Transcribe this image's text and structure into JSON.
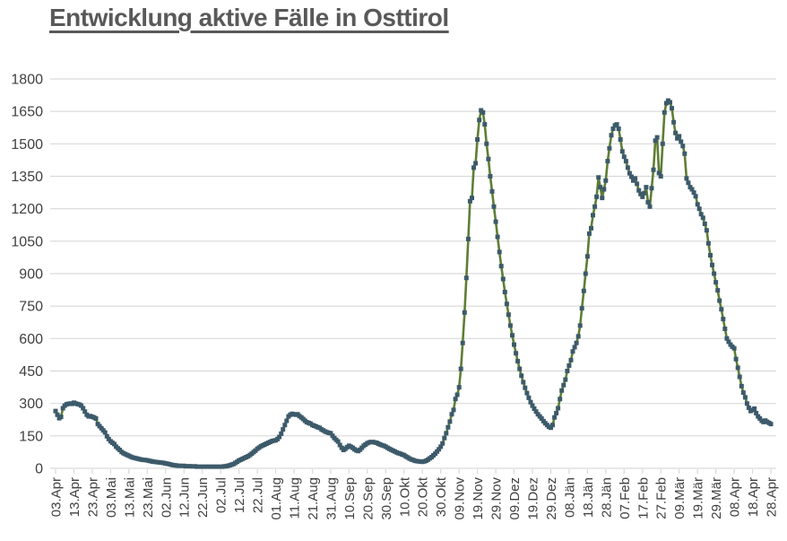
{
  "colors": {
    "background": "#ffffff",
    "title": "#595959",
    "axis_label": "#404040",
    "gridline": "#d9d9d9",
    "tick": "#d9d9d9",
    "line": "#5e7e34",
    "marker": "#3c5a6a"
  },
  "chart_data": {
    "type": "line",
    "title": "Entwicklung aktive Fälle in Osttirol",
    "xlabel": "",
    "ylabel": "",
    "ylim": [
      0,
      1800
    ],
    "y_tick_step": 150,
    "y_tick_labels": [
      "0",
      "150",
      "300",
      "450",
      "600",
      "750",
      "900",
      "1050",
      "1200",
      "1350",
      "1500",
      "1650",
      "1800"
    ],
    "grid": "horizontal",
    "legend": "none",
    "x_tick_interval_days": 10,
    "x_tick_labels": [
      "03.Apr",
      "13.Apr",
      "23.Apr",
      "03.Mai",
      "13.Mai",
      "23.Mai",
      "02.Jun",
      "12.Jun",
      "22.Jun",
      "02.Jul",
      "12.Jul",
      "22.Jul",
      "01.Aug",
      "11.Aug",
      "21.Aug",
      "31.Aug",
      "10.Sep",
      "20.Sep",
      "30.Sep",
      "10.Okt",
      "20.Okt",
      "30.Okt",
      "09.Nov",
      "19.Nov",
      "29.Nov",
      "09.Dez",
      "19.Dez",
      "29.Dez",
      "08.Jän",
      "18.Jän",
      "28.Jän",
      "07.Feb",
      "17.Feb",
      "27.Feb",
      "09.Mär",
      "19.Mär",
      "29.Mär",
      "08.Apr",
      "18.Apr",
      "28.Apr"
    ],
    "series": [
      {
        "name": "aktive Fälle",
        "marker": "square",
        "marker_color": "#3c5a6a",
        "line_color": "#5e7e34",
        "start_label": "03.Apr",
        "end_label": "28.Apr",
        "values_daily": [
          265,
          248,
          232,
          238,
          278,
          290,
          296,
          298,
          300,
          298,
          303,
          300,
          297,
          295,
          290,
          278,
          262,
          248,
          240,
          242,
          238,
          235,
          230,
          205,
          195,
          185,
          175,
          166,
          148,
          135,
          125,
          118,
          112,
          100,
          92,
          85,
          76,
          70,
          66,
          62,
          58,
          54,
          50,
          48,
          46,
          44,
          42,
          40,
          39,
          38,
          37,
          35,
          33,
          31,
          30,
          29,
          28,
          27,
          26,
          25,
          23,
          21,
          19,
          17,
          15,
          14,
          13,
          12,
          12,
          11,
          11,
          10,
          10,
          10,
          9,
          9,
          9,
          8,
          8,
          8,
          8,
          8,
          8,
          8,
          8,
          8,
          8,
          8,
          8,
          8,
          8,
          8,
          9,
          10,
          12,
          14,
          17,
          20,
          25,
          30,
          36,
          40,
          44,
          48,
          52,
          56,
          62,
          68,
          75,
          82,
          90,
          96,
          102,
          106,
          110,
          114,
          118,
          122,
          126,
          128,
          130,
          135,
          145,
          160,
          180,
          200,
          220,
          240,
          248,
          252,
          250,
          248,
          250,
          242,
          235,
          228,
          220,
          213,
          210,
          207,
          200,
          197,
          194,
          190,
          187,
          180,
          175,
          170,
          167,
          164,
          162,
          150,
          140,
          132,
          124,
          108,
          95,
          85,
          90,
          98,
          104,
          100,
          95,
          88,
          83,
          80,
          86,
          95,
          104,
          110,
          116,
          120,
          122,
          122,
          120,
          118,
          114,
          110,
          107,
          104,
          100,
          95,
          90,
          86,
          82,
          78,
          74,
          70,
          67,
          64,
          61,
          55,
          50,
          45,
          41,
          38,
          35,
          33,
          32,
          31,
          30,
          32,
          35,
          40,
          46,
          52,
          60,
          68,
          78,
          88,
          100,
          115,
          140,
          162,
          190,
          216,
          250,
          270,
          320,
          340,
          375,
          460,
          580,
          720,
          880,
          1060,
          1235,
          1250,
          1390,
          1410,
          1520,
          1610,
          1655,
          1645,
          1590,
          1500,
          1430,
          1350,
          1280,
          1210,
          1140,
          1070,
          1000,
          935,
          875,
          815,
          760,
          710,
          660,
          615,
          572,
          532,
          495,
          460,
          428,
          398,
          372,
          348,
          326,
          306,
          290,
          276,
          262,
          250,
          240,
          230,
          218,
          208,
          200,
          192,
          188,
          200,
          235,
          255,
          278,
          320,
          360,
          385,
          410,
          450,
          475,
          500,
          540,
          560,
          580,
          610,
          660,
          740,
          820,
          900,
          980,
          1085,
          1110,
          1170,
          1210,
          1255,
          1345,
          1300,
          1250,
          1290,
          1330,
          1420,
          1480,
          1540,
          1570,
          1585,
          1590,
          1570,
          1520,
          1465,
          1440,
          1420,
          1390,
          1364,
          1348,
          1330,
          1340,
          1315,
          1285,
          1268,
          1255,
          1272,
          1300,
          1230,
          1210,
          1295,
          1380,
          1515,
          1530,
          1365,
          1350,
          1500,
          1645,
          1688,
          1700,
          1692,
          1665,
          1600,
          1550,
          1525,
          1535,
          1510,
          1490,
          1455,
          1340,
          1320,
          1300,
          1290,
          1275,
          1258,
          1220,
          1200,
          1175,
          1158,
          1130,
          1100,
          1040,
          985,
          940,
          900,
          860,
          823,
          775,
          735,
          690,
          645,
          600,
          585,
          572,
          562,
          555,
          505,
          465,
          423,
          380,
          350,
          328,
          300,
          280,
          265,
          270,
          276,
          255,
          240,
          230,
          220,
          214,
          221,
          215,
          210,
          205
        ]
      }
    ]
  }
}
